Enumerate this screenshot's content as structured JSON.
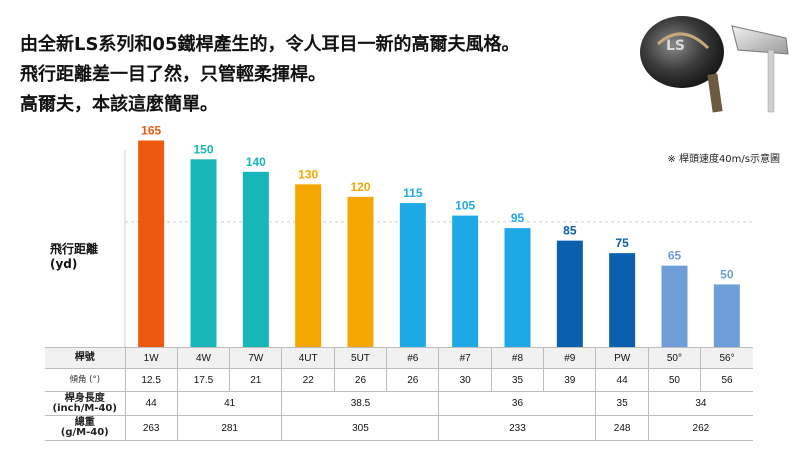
{
  "headline": {
    "line1": "由全新LS系列和05鐵桿產生的，令人耳目一新的高爾夫風格。",
    "line2": "飛行距離差一目了然，只管輕柔揮桿。",
    "line3": "高爾夫，本該這麼簡單。"
  },
  "note": "※ 桿頭速度40m/s示意圖",
  "ylabel": {
    "line1": "飛行距離",
    "line2": "(yd)"
  },
  "chart_data": {
    "type": "bar",
    "categories": [
      "1W",
      "4W",
      "7W",
      "4UT",
      "5UT",
      "#6",
      "#7",
      "#8",
      "#9",
      "PW",
      "50°",
      "56°"
    ],
    "values": [
      165,
      150,
      140,
      130,
      120,
      115,
      105,
      95,
      85,
      75,
      65,
      50
    ],
    "ylabel": "飛行距離 (yd)",
    "ylim": [
      0,
      175
    ],
    "colors": [
      "#ec5a0f",
      "#18b5b9",
      "#18b5b9",
      "#f4a700",
      "#f4a700",
      "#1ea9e6",
      "#1ea9e6",
      "#1ea9e6",
      "#0a5fae",
      "#0a5fae",
      "#6f9dd8",
      "#6f9dd8"
    ],
    "label_colors": [
      "#ec5a0f",
      "#18b5b9",
      "#18b5b9",
      "#f4a700",
      "#f4a700",
      "#1ea9e6",
      "#1ea9e6",
      "#1ea9e6",
      "#0a5fae",
      "#0a5fae",
      "#6f9dd8",
      "#6f9dd8"
    ],
    "reference_line": 100,
    "grid": false
  },
  "table": {
    "header_label": "桿號",
    "clubs": [
      "1W",
      "4W",
      "7W",
      "4UT",
      "5UT",
      "#6",
      "#7",
      "#8",
      "#9",
      "PW",
      "50°",
      "56°"
    ],
    "loft_label": "傾角 (°)",
    "lofts": [
      "12.5",
      "17.5",
      "21",
      "22",
      "26",
      "26",
      "30",
      "35",
      "39",
      "44",
      "50",
      "56"
    ],
    "length_label": "桿身長度",
    "length_unit": "(inch/M-40)",
    "lengths": [
      "44",
      "41",
      "38.5",
      "36",
      "35",
      "34"
    ],
    "weight_label": "總重",
    "weight_unit": "(g/M-40)",
    "weights": [
      "263",
      "281",
      "305",
      "233",
      "248",
      "262"
    ]
  }
}
